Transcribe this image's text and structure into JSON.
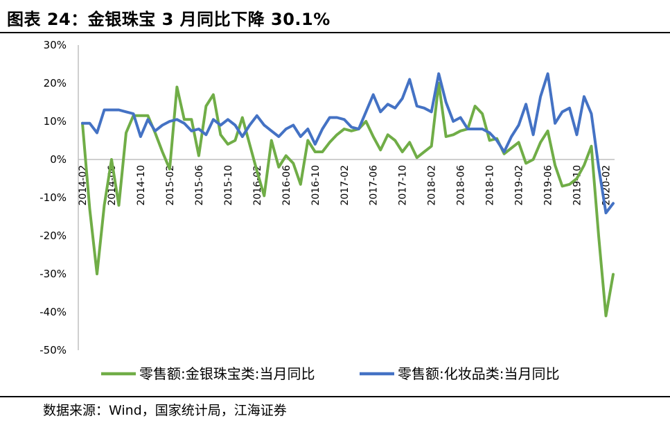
{
  "header": {
    "title": "图表 24：金银珠宝 3 月同比下降 30.1%"
  },
  "footer": {
    "source": "数据来源：Wind，国家统计局，江海证券"
  },
  "chart_data": {
    "type": "line",
    "title": "图表 24：金银珠宝 3 月同比下降 30.1%",
    "ylim": [
      -50,
      30
    ],
    "y_ticks": [
      "30%",
      "20%",
      "10%",
      "0%",
      "-10%",
      "-20%",
      "-30%",
      "-40%",
      "-50%"
    ],
    "y_tick_values": [
      30,
      20,
      10,
      0,
      -10,
      -20,
      -30,
      -40,
      -50
    ],
    "x": [
      "2014-02",
      "2014-03",
      "2014-04",
      "2014-05",
      "2014-06",
      "2014-07",
      "2014-08",
      "2014-09",
      "2014-10",
      "2014-11",
      "2014-12",
      "2015-01",
      "2015-02",
      "2015-03",
      "2015-04",
      "2015-05",
      "2015-06",
      "2015-07",
      "2015-08",
      "2015-09",
      "2015-10",
      "2015-11",
      "2015-12",
      "2016-01",
      "2016-02",
      "2016-03",
      "2016-04",
      "2016-05",
      "2016-06",
      "2016-07",
      "2016-08",
      "2016-09",
      "2016-10",
      "2016-11",
      "2016-12",
      "2017-01",
      "2017-02",
      "2017-03",
      "2017-04",
      "2017-05",
      "2017-06",
      "2017-07",
      "2017-08",
      "2017-09",
      "2017-10",
      "2017-11",
      "2017-12",
      "2018-01",
      "2018-02",
      "2018-03",
      "2018-04",
      "2018-05",
      "2018-06",
      "2018-07",
      "2018-08",
      "2018-09",
      "2018-10",
      "2018-11",
      "2018-12",
      "2019-01",
      "2019-02",
      "2019-03",
      "2019-04",
      "2019-05",
      "2019-06",
      "2019-07",
      "2019-08",
      "2019-09",
      "2019-10",
      "2019-11",
      "2019-12",
      "2020-01",
      "2020-02",
      "2020-03"
    ],
    "x_tick_labels": [
      "2014-02",
      "2014-06",
      "2014-10",
      "2015-02",
      "2015-06",
      "2015-10",
      "2016-02",
      "2016-06",
      "2016-10",
      "2017-02",
      "2017-06",
      "2017-10",
      "2018-02",
      "2018-06",
      "2018-10",
      "2019-02",
      "2019-06",
      "2019-10",
      "2020-02"
    ],
    "grid": false,
    "legend": "bottom",
    "series": [
      {
        "name": "零售额:金银珠宝类:当月同比",
        "color": "#70ad47",
        "values": [
          9.5,
          -13,
          -30,
          -12,
          0,
          -12,
          7,
          11.5,
          11.5,
          11.5,
          7,
          2,
          -2.5,
          19,
          10.5,
          10.5,
          1,
          14,
          17,
          6.5,
          4,
          5,
          11,
          4,
          -3,
          -9.5,
          5,
          -2,
          1,
          -1,
          -6.5,
          5,
          2,
          2,
          4.5,
          6.5,
          8,
          7.5,
          8,
          10,
          6,
          2.5,
          6.5,
          5,
          2,
          4.5,
          0.5,
          2,
          3.5,
          20,
          6,
          6.5,
          7.5,
          8,
          14,
          12,
          5,
          5.5,
          1.5,
          3,
          4.5,
          -1,
          0,
          4.5,
          7.5,
          -1.5,
          -7,
          -6.5,
          -5,
          -1.5,
          3.5,
          -20,
          -41,
          -30.1
        ]
      },
      {
        "name": "零售额:化妆品类:当月同比",
        "color": "#4472c4",
        "values": [
          9.5,
          9.5,
          7,
          13,
          13,
          13,
          12.5,
          12,
          6,
          10.5,
          7.5,
          9,
          10,
          10.5,
          9.5,
          7.5,
          8,
          6.5,
          10.5,
          9,
          10.5,
          9,
          6,
          9,
          11.5,
          9,
          7.5,
          6,
          8,
          9,
          6,
          8,
          4,
          8,
          11,
          11,
          10.5,
          8.5,
          8,
          12.5,
          17,
          12.5,
          14.5,
          13.5,
          16,
          21,
          14,
          13.5,
          12.5,
          22.5,
          15,
          10,
          11,
          8,
          8,
          8,
          7,
          5,
          2,
          6,
          9,
          14.5,
          6.5,
          16.5,
          22.5,
          9.5,
          12.5,
          13.5,
          6.5,
          16.5,
          12,
          -2,
          -14,
          -11.5
        ]
      }
    ]
  }
}
